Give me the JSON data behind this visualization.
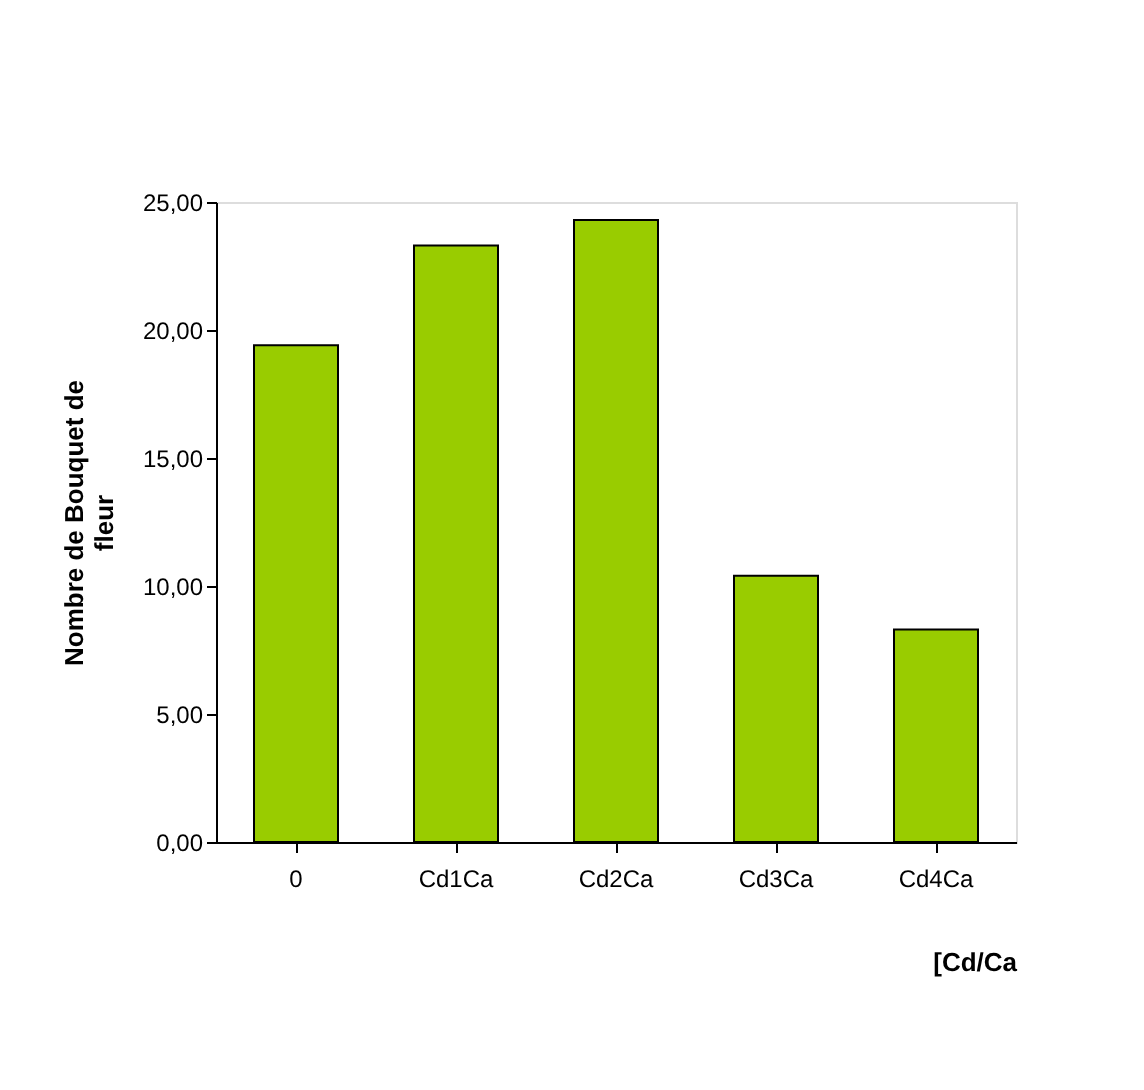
{
  "chart_data": {
    "type": "bar",
    "categories": [
      "0",
      "Cd1Ca",
      "Cd2Ca",
      "Cd3Ca",
      "Cd4Ca"
    ],
    "values": [
      19.4,
      23.3,
      24.3,
      10.4,
      8.3
    ],
    "color": "#99cc00",
    "xlabel": "[Cd/Ca",
    "ylabel": "Nombre de Bouquet de fleur",
    "ylim": [
      0,
      25
    ],
    "yticks": [
      {
        "value": 0,
        "label": "0,00"
      },
      {
        "value": 5,
        "label": "5,00"
      },
      {
        "value": 10,
        "label": "10,00"
      },
      {
        "value": 15,
        "label": "15,00"
      },
      {
        "value": 20,
        "label": "20,00"
      },
      {
        "value": 25,
        "label": "25,00"
      }
    ],
    "grid": false
  }
}
